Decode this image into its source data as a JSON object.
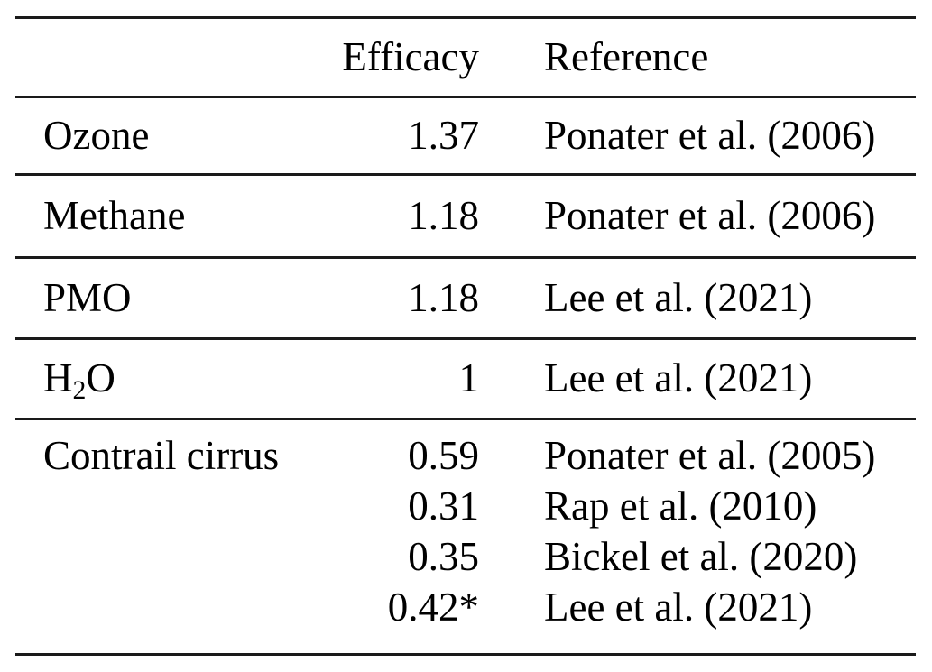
{
  "table": {
    "header": {
      "name": "",
      "efficacy": "Efficacy",
      "reference": "Reference"
    },
    "rows": [
      {
        "name": "Ozone",
        "efficacy": "1.37",
        "reference": "Ponater et al. (2006)"
      },
      {
        "name": "Methane",
        "efficacy": "1.18",
        "reference": "Ponater et al. (2006)"
      },
      {
        "name": "PMO",
        "efficacy": "1.18",
        "reference": "Lee et al. (2021)"
      },
      {
        "name_base": "H",
        "name_sub": "2",
        "name_tail": "O",
        "efficacy": "1",
        "reference": "Lee et al. (2021)"
      },
      {
        "name": "Contrail cirrus",
        "entries": [
          {
            "efficacy": "0.59",
            "reference": "Ponater et al. (2005)"
          },
          {
            "efficacy": "0.31",
            "reference": "Rap et al. (2010)"
          },
          {
            "efficacy": "0.35",
            "reference": "Bickel et al. (2020)"
          },
          {
            "efficacy": "0.42*",
            "reference": "Lee et al. (2021)"
          }
        ]
      }
    ],
    "rule_color": "#1a1a1a"
  }
}
